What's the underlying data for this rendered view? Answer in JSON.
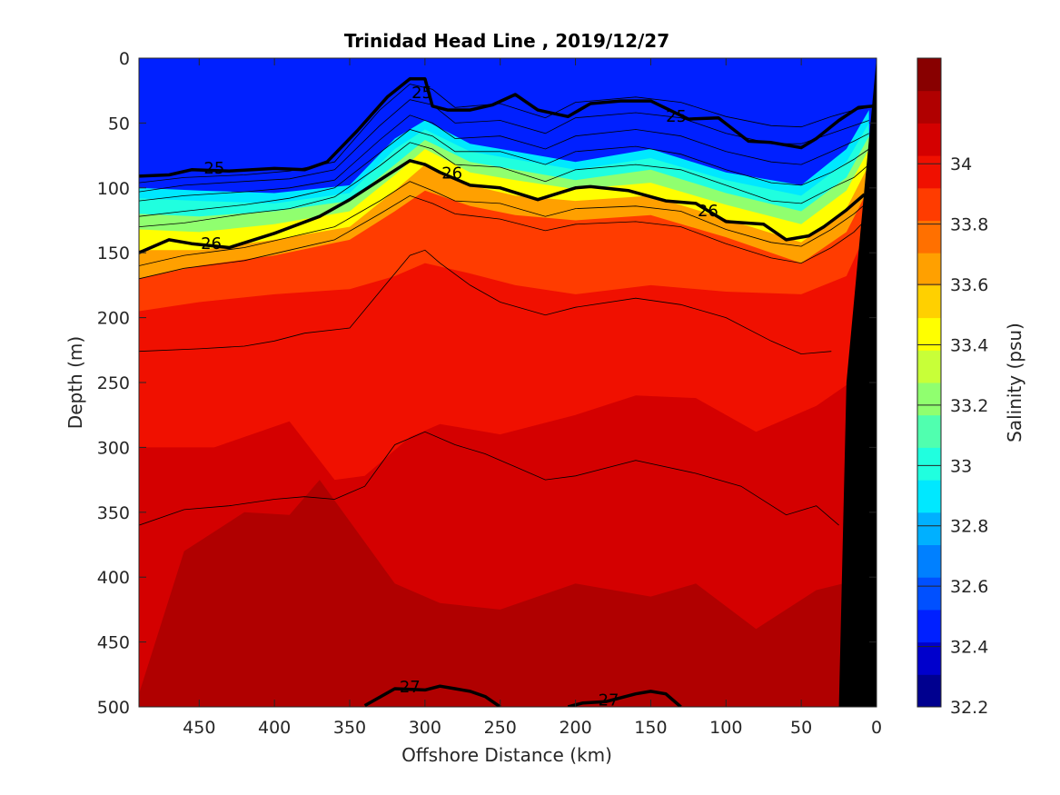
{
  "chart_data": {
    "type": "heatmap",
    "title": "Trinidad Head Line , 2019/12/27",
    "xlabel": "Offshore Distance (km)",
    "ylabel": "Depth (m)",
    "colorbar_label": "Salinity (psu)",
    "xlim": [
      490,
      0
    ],
    "ylim": [
      0,
      500
    ],
    "y_reversed": true,
    "x_reversed": true,
    "xticks": [
      450,
      400,
      350,
      300,
      250,
      200,
      150,
      100,
      50,
      0
    ],
    "yticks": [
      0,
      50,
      100,
      150,
      200,
      250,
      300,
      350,
      400,
      450,
      500
    ],
    "clim": [
      32.2,
      34.35
    ],
    "colorbar_ticks": [
      34,
      33.8,
      33.6,
      33.4,
      33.2,
      33,
      32.8,
      32.6,
      32.4,
      32.2
    ],
    "colors": [
      "#00008f",
      "#0000cc",
      "#0020ff",
      "#0050ff",
      "#0080ff",
      "#00b0ff",
      "#00e8ff",
      "#20ffdf",
      "#50ffaf",
      "#90ff6f",
      "#c8ff38",
      "#ffff00",
      "#ffd000",
      "#ffa000",
      "#ff7000",
      "#ff3c00",
      "#f01000",
      "#d40000",
      "#b00000",
      "#880000"
    ],
    "salinity_contours": [
      {
        "level": 32.8,
        "x": [
          490,
          450,
          400,
          350,
          320,
          300,
          270,
          240,
          200,
          150,
          100,
          50,
          20,
          5
        ],
        "depth": [
          100,
          102,
          104,
          98,
          62,
          48,
          66,
          72,
          80,
          70,
          88,
          98,
          70,
          40
        ]
      },
      {
        "level": 33.0,
        "x": [
          490,
          450,
          400,
          350,
          320,
          300,
          270,
          240,
          200,
          150,
          100,
          50,
          20,
          5
        ],
        "depth": [
          108,
          110,
          112,
          104,
          70,
          55,
          72,
          78,
          86,
          77,
          94,
          106,
          80,
          50
        ]
      },
      {
        "level": 33.2,
        "x": [
          490,
          450,
          400,
          350,
          320,
          300,
          270,
          240,
          200,
          150,
          100,
          50,
          20,
          5
        ],
        "depth": [
          120,
          122,
          118,
          110,
          82,
          63,
          80,
          86,
          94,
          86,
          104,
          118,
          92,
          60
        ]
      },
      {
        "level": 33.4,
        "x": [
          490,
          450,
          400,
          350,
          320,
          300,
          270,
          240,
          200,
          150,
          100,
          50,
          20,
          5
        ],
        "depth": [
          132,
          134,
          128,
          118,
          90,
          70,
          88,
          94,
          101,
          96,
          113,
          128,
          102,
          70
        ]
      },
      {
        "level": 33.6,
        "x": [
          490,
          450,
          400,
          350,
          320,
          300,
          270,
          240,
          200,
          150,
          100,
          50,
          20,
          5
        ],
        "depth": [
          148,
          148,
          140,
          130,
          102,
          82,
          98,
          106,
          110,
          106,
          124,
          142,
          116,
          82
        ]
      },
      {
        "level": 33.8,
        "x": [
          490,
          450,
          400,
          350,
          320,
          300,
          270,
          240,
          200,
          150,
          100,
          50,
          20,
          5
        ],
        "depth": [
          170,
          160,
          152,
          140,
          118,
          102,
          114,
          121,
          125,
          121,
          138,
          158,
          134,
          100
        ]
      },
      {
        "level": 33.9,
        "x": [
          490,
          450,
          400,
          350,
          320,
          300,
          270,
          240,
          200,
          150,
          100,
          50,
          20,
          5
        ],
        "depth": [
          195,
          188,
          182,
          178,
          168,
          158,
          166,
          175,
          182,
          175,
          180,
          182,
          168,
          130
        ]
      },
      {
        "level": 34.0,
        "x": [
          490,
          440,
          390,
          360,
          340,
          310,
          290,
          250,
          200,
          160,
          120,
          80,
          40,
          5
        ],
        "depth": [
          300,
          300,
          280,
          325,
          322,
          292,
          282,
          290,
          275,
          260,
          262,
          288,
          268,
          240
        ]
      },
      {
        "level": 34.1,
        "x": [
          490,
          460,
          420,
          390,
          370,
          320,
          290,
          250,
          200,
          150,
          120,
          80,
          40,
          5
        ],
        "depth": [
          490,
          380,
          350,
          352,
          325,
          405,
          420,
          425,
          405,
          415,
          405,
          440,
          410,
          400
        ]
      }
    ],
    "density_isolines": [
      {
        "x": [
          490,
          460,
          420,
          390,
          360,
          330,
          310,
          295,
          280,
          250,
          220,
          200,
          160,
          130,
          100,
          70,
          50,
          30,
          15,
          5
        ],
        "depth": [
          96,
          92,
          90,
          87,
          80,
          40,
          20,
          24,
          38,
          35,
          46,
          34,
          30,
          34,
          45,
          52,
          53,
          45,
          40,
          38
        ]
      },
      {
        "x": [
          490,
          460,
          420,
          390,
          360,
          330,
          310,
          295,
          280,
          250,
          220,
          200,
          160,
          130,
          100,
          70,
          50,
          30,
          15,
          5
        ],
        "depth": [
          103,
          98,
          95,
          93,
          86,
          52,
          32,
          36,
          50,
          48,
          58,
          46,
          42,
          46,
          58,
          66,
          66,
          58,
          52,
          48
        ]
      },
      {
        "x": [
          490,
          460,
          420,
          390,
          360,
          330,
          310,
          295,
          280,
          250,
          220,
          200,
          160,
          130,
          100,
          70,
          50,
          30,
          15,
          5
        ],
        "depth": [
          110,
          106,
          103,
          100,
          94,
          63,
          44,
          50,
          62,
          60,
          70,
          60,
          55,
          60,
          72,
          80,
          82,
          72,
          64,
          58
        ]
      },
      {
        "x": [
          490,
          460,
          420,
          390,
          360,
          330,
          310,
          295,
          280,
          250,
          220,
          200,
          160,
          130,
          100,
          70,
          50,
          30,
          15,
          5
        ],
        "depth": [
          122,
          118,
          113,
          108,
          100,
          73,
          55,
          60,
          72,
          72,
          82,
          72,
          68,
          74,
          86,
          96,
          98,
          88,
          78,
          70
        ]
      },
      {
        "x": [
          490,
          460,
          420,
          390,
          360,
          330,
          310,
          295,
          280,
          250,
          220,
          200,
          160,
          130,
          100,
          70,
          50,
          30,
          15,
          5
        ],
        "depth": [
          130,
          127,
          120,
          116,
          107,
          83,
          65,
          70,
          82,
          84,
          95,
          86,
          82,
          86,
          98,
          110,
          112,
          100,
          92,
          82
        ]
      },
      {
        "x": [
          490,
          460,
          420,
          390,
          360,
          330,
          310,
          295,
          280,
          250,
          220,
          200,
          160,
          130,
          100,
          70,
          50,
          30,
          15,
          5
        ],
        "depth": [
          160,
          152,
          146,
          138,
          130,
          110,
          95,
          102,
          110,
          112,
          122,
          116,
          114,
          118,
          132,
          142,
          145,
          132,
          120,
          110
        ]
      },
      {
        "x": [
          490,
          460,
          420,
          390,
          360,
          330,
          310,
          295,
          280,
          250,
          220,
          200,
          160,
          130,
          100,
          70,
          50,
          30,
          15,
          5
        ],
        "depth": [
          170,
          162,
          156,
          148,
          140,
          120,
          106,
          112,
          120,
          124,
          133,
          128,
          126,
          130,
          143,
          154,
          158,
          146,
          134,
          122
        ]
      },
      {
        "x": [
          490,
          450,
          420,
          400,
          380,
          350,
          330,
          310,
          300,
          290,
          270,
          250,
          220,
          200,
          160,
          130,
          100,
          70,
          50,
          30
        ],
        "depth": [
          226,
          224,
          222,
          218,
          212,
          208,
          180,
          152,
          148,
          158,
          175,
          188,
          198,
          192,
          185,
          190,
          200,
          218,
          228,
          226
        ]
      },
      {
        "x": [
          490,
          460,
          430,
          400,
          380,
          360,
          340,
          320,
          300,
          280,
          260,
          240,
          220,
          200,
          160,
          120,
          90,
          60,
          40,
          25
        ],
        "depth": [
          360,
          348,
          345,
          340,
          338,
          340,
          330,
          298,
          288,
          298,
          305,
          315,
          325,
          322,
          310,
          320,
          330,
          352,
          345,
          360
        ]
      }
    ],
    "density_contours": [
      {
        "label": "25",
        "x": [
          490,
          470,
          455,
          430,
          400,
          380,
          365,
          345,
          325,
          310,
          300,
          295,
          285,
          270,
          255,
          240,
          225,
          205,
          190,
          170,
          150,
          125,
          105,
          85,
          70,
          50,
          40,
          25,
          12,
          2
        ],
        "depth": [
          91,
          90,
          86,
          87,
          85,
          86,
          80,
          56,
          30,
          16,
          16,
          37,
          40,
          40,
          36,
          28,
          40,
          45,
          35,
          33,
          33,
          47,
          46,
          64,
          65,
          69,
          62,
          48,
          38,
          37
        ],
        "label_positions": [
          [
            440,
            84
          ],
          [
            302,
            26
          ],
          [
            133,
            44
          ]
        ]
      },
      {
        "label": "26",
        "x": [
          490,
          470,
          455,
          430,
          400,
          370,
          350,
          330,
          310,
          300,
          290,
          270,
          250,
          225,
          200,
          190,
          165,
          140,
          120,
          100,
          75,
          60,
          45,
          35,
          20,
          8
        ],
        "depth": [
          150,
          140,
          143,
          146,
          135,
          122,
          109,
          94,
          79,
          82,
          88,
          98,
          100,
          109,
          100,
          99,
          102,
          110,
          112,
          126,
          128,
          140,
          137,
          130,
          117,
          105
        ],
        "label_positions": [
          [
            442,
            142
          ],
          [
            282,
            88
          ],
          [
            112,
            117
          ]
        ]
      },
      {
        "label": "27",
        "x": [
          340,
          320,
          300,
          290,
          280,
          270,
          260,
          250
        ],
        "depth": [
          499,
          486,
          487,
          484,
          486,
          488,
          492,
          500
        ],
        "label_positions": [
          [
            310,
            484
          ]
        ]
      },
      {
        "label": "27",
        "x": [
          205,
          195,
          180,
          160,
          150,
          140,
          130
        ],
        "depth": [
          500,
          497,
          496,
          490,
          488,
          490,
          500
        ],
        "label_positions": [
          [
            178,
            494
          ]
        ]
      }
    ],
    "land_mask": {
      "x": [
        25,
        20,
        0,
        0
      ],
      "depth": [
        500,
        250,
        0,
        500
      ]
    }
  }
}
